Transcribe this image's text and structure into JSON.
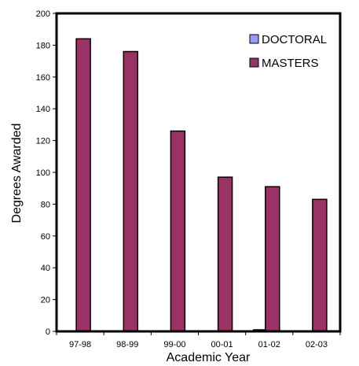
{
  "chart_data": {
    "type": "bar",
    "categories": [
      "97-98",
      "98-99",
      "99-00",
      "00-01",
      "01-02",
      "02-03"
    ],
    "series": [
      {
        "name": "DOCTORAL",
        "color": "#9999FF",
        "values": [
          0,
          0,
          0,
          0,
          1,
          0
        ]
      },
      {
        "name": "MASTERS",
        "color": "#993366",
        "values": [
          184,
          176,
          126,
          97,
          91,
          83
        ]
      }
    ],
    "title": "",
    "xlabel": "Academic Year",
    "ylabel": "Degrees Awarded",
    "ylim": [
      0,
      200
    ],
    "yticks": [
      0,
      20,
      40,
      60,
      80,
      100,
      120,
      140,
      160,
      180,
      200
    ],
    "grid": false,
    "legend": "top-right"
  }
}
